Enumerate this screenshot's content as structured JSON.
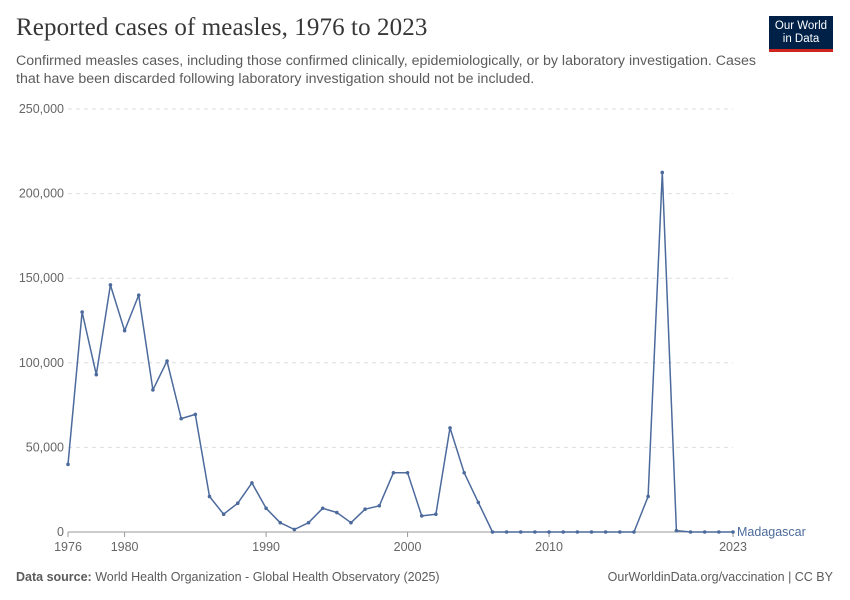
{
  "header": {
    "title": "Reported cases of measles, 1976 to 2023",
    "subtitle": "Confirmed measles cases, including those confirmed clinically, epidemiologically, or by laboratory investigation. Cases that have been discarded following laboratory investigation should not be included."
  },
  "logo": {
    "line1": "Our World",
    "line2": "in Data",
    "bg_color": "#002147",
    "accent_color": "#ce261e"
  },
  "footer": {
    "source_label": "Data source:",
    "source_text": "World Health Organization - Global Health Observatory (2025)",
    "right_text": "OurWorldinData.org/vaccination | CC BY"
  },
  "chart_data": {
    "type": "line",
    "title": "Reported cases of measles, 1976 to 2023",
    "xlim": [
      1976,
      2023
    ],
    "ylim": [
      0,
      250000
    ],
    "x_ticks": [
      1976,
      1980,
      1990,
      2000,
      2010,
      2023
    ],
    "y_ticks": [
      0,
      50000,
      100000,
      150000,
      200000,
      250000
    ],
    "y_tick_labels": [
      "0",
      "50,000",
      "100,000",
      "150,000",
      "200,000",
      "250,000"
    ],
    "grid": "horizontal dashed",
    "line_color": "#4c6a9c",
    "series": [
      {
        "name": "Madagascar",
        "x": [
          1976,
          1977,
          1978,
          1979,
          1980,
          1981,
          1982,
          1983,
          1984,
          1985,
          1986,
          1987,
          1988,
          1989,
          1990,
          1991,
          1992,
          1993,
          1994,
          1995,
          1996,
          1997,
          1998,
          1999,
          2000,
          2001,
          2002,
          2003,
          2004,
          2005,
          2006,
          2007,
          2008,
          2009,
          2010,
          2011,
          2012,
          2013,
          2014,
          2015,
          2016,
          2017,
          2018,
          2019,
          2020,
          2021,
          2022,
          2023
        ],
        "values": [
          40000,
          130000,
          93000,
          146000,
          119000,
          140000,
          84000,
          101000,
          67000,
          69500,
          21000,
          10500,
          17000,
          29000,
          14000,
          5500,
          1500,
          5500,
          14000,
          11500,
          5500,
          13500,
          15500,
          35000,
          35000,
          9500,
          10500,
          61500,
          35000,
          17500,
          0,
          0,
          0,
          0,
          0,
          0,
          0,
          0,
          0,
          0,
          0,
          21000,
          212500,
          800,
          0,
          0,
          0,
          0
        ]
      }
    ]
  }
}
